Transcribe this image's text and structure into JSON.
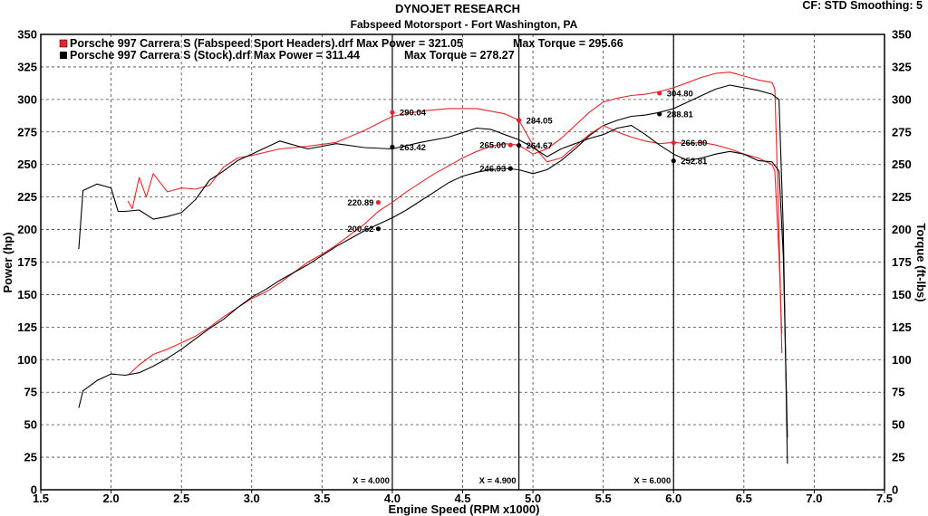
{
  "header": {
    "title": "DYNOJET RESEARCH",
    "subtitle": "Fabspeed Motorsport - Fort Washington, PA",
    "cf_info": "CF: STD  Smoothing: 5"
  },
  "chart_data": {
    "type": "line",
    "xlabel": "Engine Speed (RPM x1000)",
    "ylabel": "Power (hp)",
    "y2label": "Torque (ft-lbs)",
    "xlim": [
      1.5,
      7.5
    ],
    "ylim": [
      0,
      350
    ],
    "y2lim": [
      0,
      350
    ],
    "grid": true,
    "legend_position": "top-left",
    "x_ticks": [
      "1.5",
      "2.0",
      "2.5",
      "3.0",
      "3.5",
      "4.0",
      "4.5",
      "5.0",
      "5.5",
      "6.0",
      "6.5",
      "7.0",
      "7.5"
    ],
    "x_tick_values": [
      1.5,
      2.0,
      2.5,
      3.0,
      3.5,
      4.0,
      4.5,
      5.0,
      5.5,
      6.0,
      6.5,
      7.0,
      7.5
    ],
    "y_ticks": [
      "0",
      "25",
      "50",
      "75",
      "100",
      "125",
      "150",
      "175",
      "200",
      "225",
      "250",
      "275",
      "300",
      "325",
      "350"
    ],
    "y_tick_values": [
      0,
      25,
      50,
      75,
      100,
      125,
      150,
      175,
      200,
      225,
      250,
      275,
      300,
      325,
      350
    ],
    "legend": [
      {
        "text": "Porsche 997 Carrera S (Fabspeed Sport Headers).drf Max Power = 321.05",
        "torque_text": "Max Torque = 295.66",
        "color": "#e8252b"
      },
      {
        "text": "Porsche 997 Carrera S (Stock).drf Max Power = 311.44",
        "torque_text": "Max Torque = 278.27",
        "color": "#000000"
      }
    ],
    "markers": [
      {
        "x": 4.0,
        "label": "X = 4.000"
      },
      {
        "x": 4.9,
        "label": "X = 4.900"
      },
      {
        "x": 6.0,
        "label": "X = 6.000"
      }
    ],
    "series": [
      {
        "name": "Porsche 997 Carrera S (Fabspeed Sport Headers).drf",
        "kind": "power",
        "color": "#e8252b",
        "x": [
          2.12,
          2.2,
          2.3,
          2.4,
          2.5,
          2.6,
          2.7,
          2.8,
          2.9,
          3.0,
          3.1,
          3.2,
          3.3,
          3.4,
          3.5,
          3.6,
          3.7,
          3.8,
          3.9,
          4.0,
          4.1,
          4.2,
          4.3,
          4.4,
          4.5,
          4.6,
          4.7,
          4.8,
          4.9,
          5.0,
          5.1,
          5.2,
          5.3,
          5.4,
          5.5,
          5.6,
          5.7,
          5.8,
          5.9,
          6.0,
          6.1,
          6.2,
          6.3,
          6.4,
          6.5,
          6.6,
          6.7,
          6.72,
          6.75,
          6.77
        ],
        "y": [
          88,
          96,
          104,
          108,
          113,
          118,
          125,
          133,
          140,
          147,
          152,
          159,
          167,
          175,
          181,
          188,
          196,
          204,
          214,
          221,
          229,
          236,
          243,
          249,
          255,
          260,
          264,
          266,
          265,
          258,
          262,
          270,
          280,
          290,
          298,
          301,
          303,
          304,
          306,
          309,
          313,
          317,
          320,
          321,
          318,
          315,
          313,
          308,
          200,
          105
        ]
      },
      {
        "name": "Porsche 997 Carrera S (Stock).drf",
        "kind": "power",
        "color": "#000000",
        "x": [
          1.77,
          1.8,
          1.9,
          2.0,
          2.1,
          2.2,
          2.3,
          2.4,
          2.5,
          2.6,
          2.7,
          2.8,
          2.9,
          3.0,
          3.1,
          3.2,
          3.3,
          3.4,
          3.5,
          3.6,
          3.7,
          3.8,
          3.9,
          4.0,
          4.1,
          4.2,
          4.3,
          4.4,
          4.5,
          4.6,
          4.7,
          4.8,
          4.9,
          5.0,
          5.1,
          5.2,
          5.3,
          5.4,
          5.5,
          5.6,
          5.7,
          5.8,
          5.9,
          6.0,
          6.1,
          6.2,
          6.3,
          6.4,
          6.5,
          6.6,
          6.7,
          6.75,
          6.78,
          6.81
        ],
        "y": [
          63,
          76,
          84,
          89,
          88,
          90,
          95,
          101,
          108,
          116,
          124,
          131,
          140,
          148,
          154,
          161,
          167,
          173,
          180,
          187,
          193,
          199,
          204,
          209,
          215,
          222,
          229,
          236,
          241,
          244,
          246,
          247,
          246,
          243,
          246,
          253,
          262,
          272,
          280,
          284,
          287,
          288,
          290,
          293,
          298,
          303,
          308,
          311,
          309,
          307,
          304,
          300,
          200,
          20
        ]
      },
      {
        "name": "Porsche 997 Carrera S (Fabspeed Sport Headers).drf",
        "kind": "torque",
        "color": "#e8252b",
        "x": [
          2.12,
          2.15,
          2.2,
          2.25,
          2.3,
          2.4,
          2.5,
          2.6,
          2.7,
          2.8,
          2.9,
          3.0,
          3.2,
          3.4,
          3.6,
          3.8,
          4.0,
          4.2,
          4.4,
          4.6,
          4.7,
          4.8,
          4.9,
          5.0,
          5.1,
          5.2,
          5.3,
          5.4,
          5.5,
          5.6,
          5.7,
          5.8,
          5.9,
          6.0,
          6.1,
          6.2,
          6.3,
          6.4,
          6.5,
          6.6,
          6.7,
          6.72,
          6.75,
          6.77
        ],
        "y": [
          222,
          216,
          240,
          225,
          243,
          229,
          232,
          231,
          234,
          248,
          255,
          257,
          262,
          264,
          267,
          276,
          287,
          291,
          293,
          293,
          291,
          289,
          284,
          265,
          252,
          255,
          264,
          273,
          280,
          275,
          271,
          268,
          266,
          267,
          266,
          267,
          265,
          262,
          258,
          255,
          250,
          245,
          180,
          120
        ]
      },
      {
        "name": "Porsche 997 Carrera S (Stock).drf",
        "kind": "torque",
        "color": "#000000",
        "x": [
          1.77,
          1.8,
          1.9,
          2.0,
          2.05,
          2.1,
          2.2,
          2.3,
          2.4,
          2.5,
          2.6,
          2.7,
          2.8,
          2.9,
          3.0,
          3.2,
          3.4,
          3.6,
          3.8,
          4.0,
          4.2,
          4.4,
          4.6,
          4.7,
          4.8,
          4.9,
          5.0,
          5.1,
          5.2,
          5.3,
          5.4,
          5.5,
          5.6,
          5.7,
          5.8,
          5.9,
          6.0,
          6.1,
          6.2,
          6.3,
          6.4,
          6.5,
          6.6,
          6.7,
          6.75,
          6.78,
          6.81
        ],
        "y": [
          185,
          230,
          235,
          232,
          214,
          214,
          215,
          208,
          210,
          213,
          223,
          238,
          245,
          253,
          258,
          268,
          262,
          266,
          263,
          262,
          267,
          271,
          278,
          277,
          273,
          269,
          263,
          256,
          262,
          266,
          270,
          273,
          278,
          280,
          273,
          265,
          258,
          253,
          255,
          258,
          260,
          258,
          253,
          252,
          245,
          180,
          40
        ]
      }
    ],
    "data_labels": [
      {
        "x": 3.9,
        "y": 220.89,
        "text": "220.89",
        "color": "#e8252b"
      },
      {
        "x": 3.9,
        "y": 200.62,
        "text": "200.62",
        "color": "#000000"
      },
      {
        "x": 4.0,
        "y": 290.04,
        "text": "290.04",
        "color": "#e8252b"
      },
      {
        "x": 4.0,
        "y": 263.42,
        "text": "263.42",
        "color": "#000000"
      },
      {
        "x": 4.84,
        "y": 265.0,
        "text": "265.00",
        "color": "#e8252b"
      },
      {
        "x": 4.84,
        "y": 246.93,
        "text": "246.93",
        "color": "#000000"
      },
      {
        "x": 4.9,
        "y": 284.05,
        "text": "284.05",
        "color": "#e8252b"
      },
      {
        "x": 4.9,
        "y": 264.67,
        "text": "264.67",
        "color": "#000000"
      },
      {
        "x": 5.9,
        "y": 304.8,
        "text": "304.80",
        "color": "#e8252b"
      },
      {
        "x": 5.9,
        "y": 288.81,
        "text": "288.81",
        "color": "#000000"
      },
      {
        "x": 6.0,
        "y": 266.8,
        "text": "266.80",
        "color": "#e8252b"
      },
      {
        "x": 6.0,
        "y": 252.81,
        "text": "252.81",
        "color": "#000000"
      }
    ]
  }
}
